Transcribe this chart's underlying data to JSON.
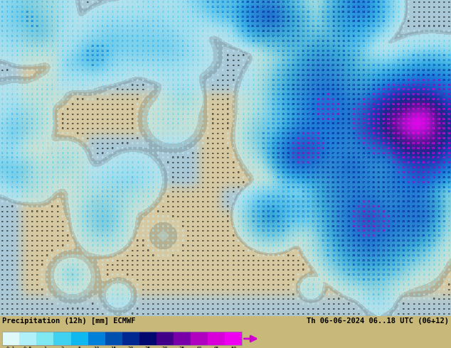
{
  "title_left": "Precipitation (12h) [mm] ECMWF",
  "title_right": "Th 06-06-2024 06..18 UTC (06+12)",
  "colorbar_tick_labels": [
    "0.1",
    "0.5",
    "1",
    "2",
    "5",
    "10",
    "15",
    "20",
    "25",
    "30",
    "35",
    "40",
    "45",
    "50"
  ],
  "colorbar_colors": [
    "#dff8f8",
    "#b0f0f8",
    "#80e8f0",
    "#40d0f0",
    "#10b8f0",
    "#0080d8",
    "#0050b0",
    "#002890",
    "#000870",
    "#400088",
    "#7800a8",
    "#b000c0",
    "#d800d8",
    "#f000f0"
  ],
  "arrow_color": "#d000d0",
  "bg_color": "#c8b87a",
  "sea_color": "#a8c8d8",
  "land_color": "#d4c8a0",
  "fig_width": 6.34,
  "fig_height": 4.9,
  "dpi": 100,
  "precip_colors": {
    "0": "#000000",
    "light": "#60c8e8",
    "medium": "#2060c0",
    "heavy": "#0000a0",
    "vheavy": "#800090"
  }
}
